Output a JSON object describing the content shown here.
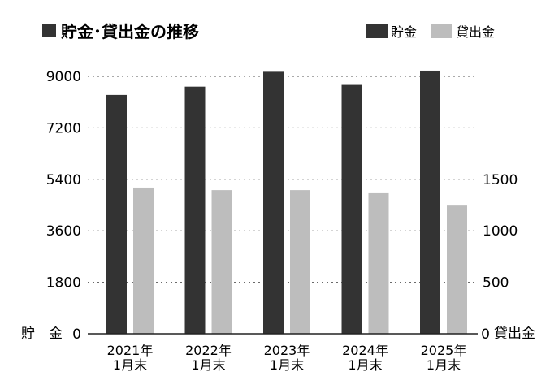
{
  "chart_data": {
    "type": "bar",
    "title": "貯金･貸出金の推移",
    "categories": [
      [
        "2021年",
        "1月末"
      ],
      [
        "2022年",
        "1月末"
      ],
      [
        "2023年",
        "1月末"
      ],
      [
        "2024年",
        "1月末"
      ],
      [
        "2025年",
        "1月末"
      ]
    ],
    "series": [
      {
        "name": "貯金",
        "axis": "left",
        "color": "#333333",
        "values": [
          8350,
          8640,
          9160,
          8700,
          9200
        ]
      },
      {
        "name": "貸出金",
        "axis": "right",
        "color": "#bdbdbd",
        "values": [
          1420,
          1395,
          1395,
          1365,
          1245
        ]
      }
    ],
    "left_axis": {
      "label": "貯　金",
      "ticks": [
        0,
        1800,
        3600,
        5400,
        7200,
        9000
      ],
      "ylim": [
        0,
        9000
      ]
    },
    "right_axis": {
      "label": "貸出金",
      "ticks": [
        0,
        500,
        1000,
        1500
      ],
      "ylim": [
        0,
        2500
      ]
    },
    "legend": {
      "position": "top-right",
      "entries": [
        "貯金",
        "貸出金"
      ]
    },
    "grid": true
  }
}
